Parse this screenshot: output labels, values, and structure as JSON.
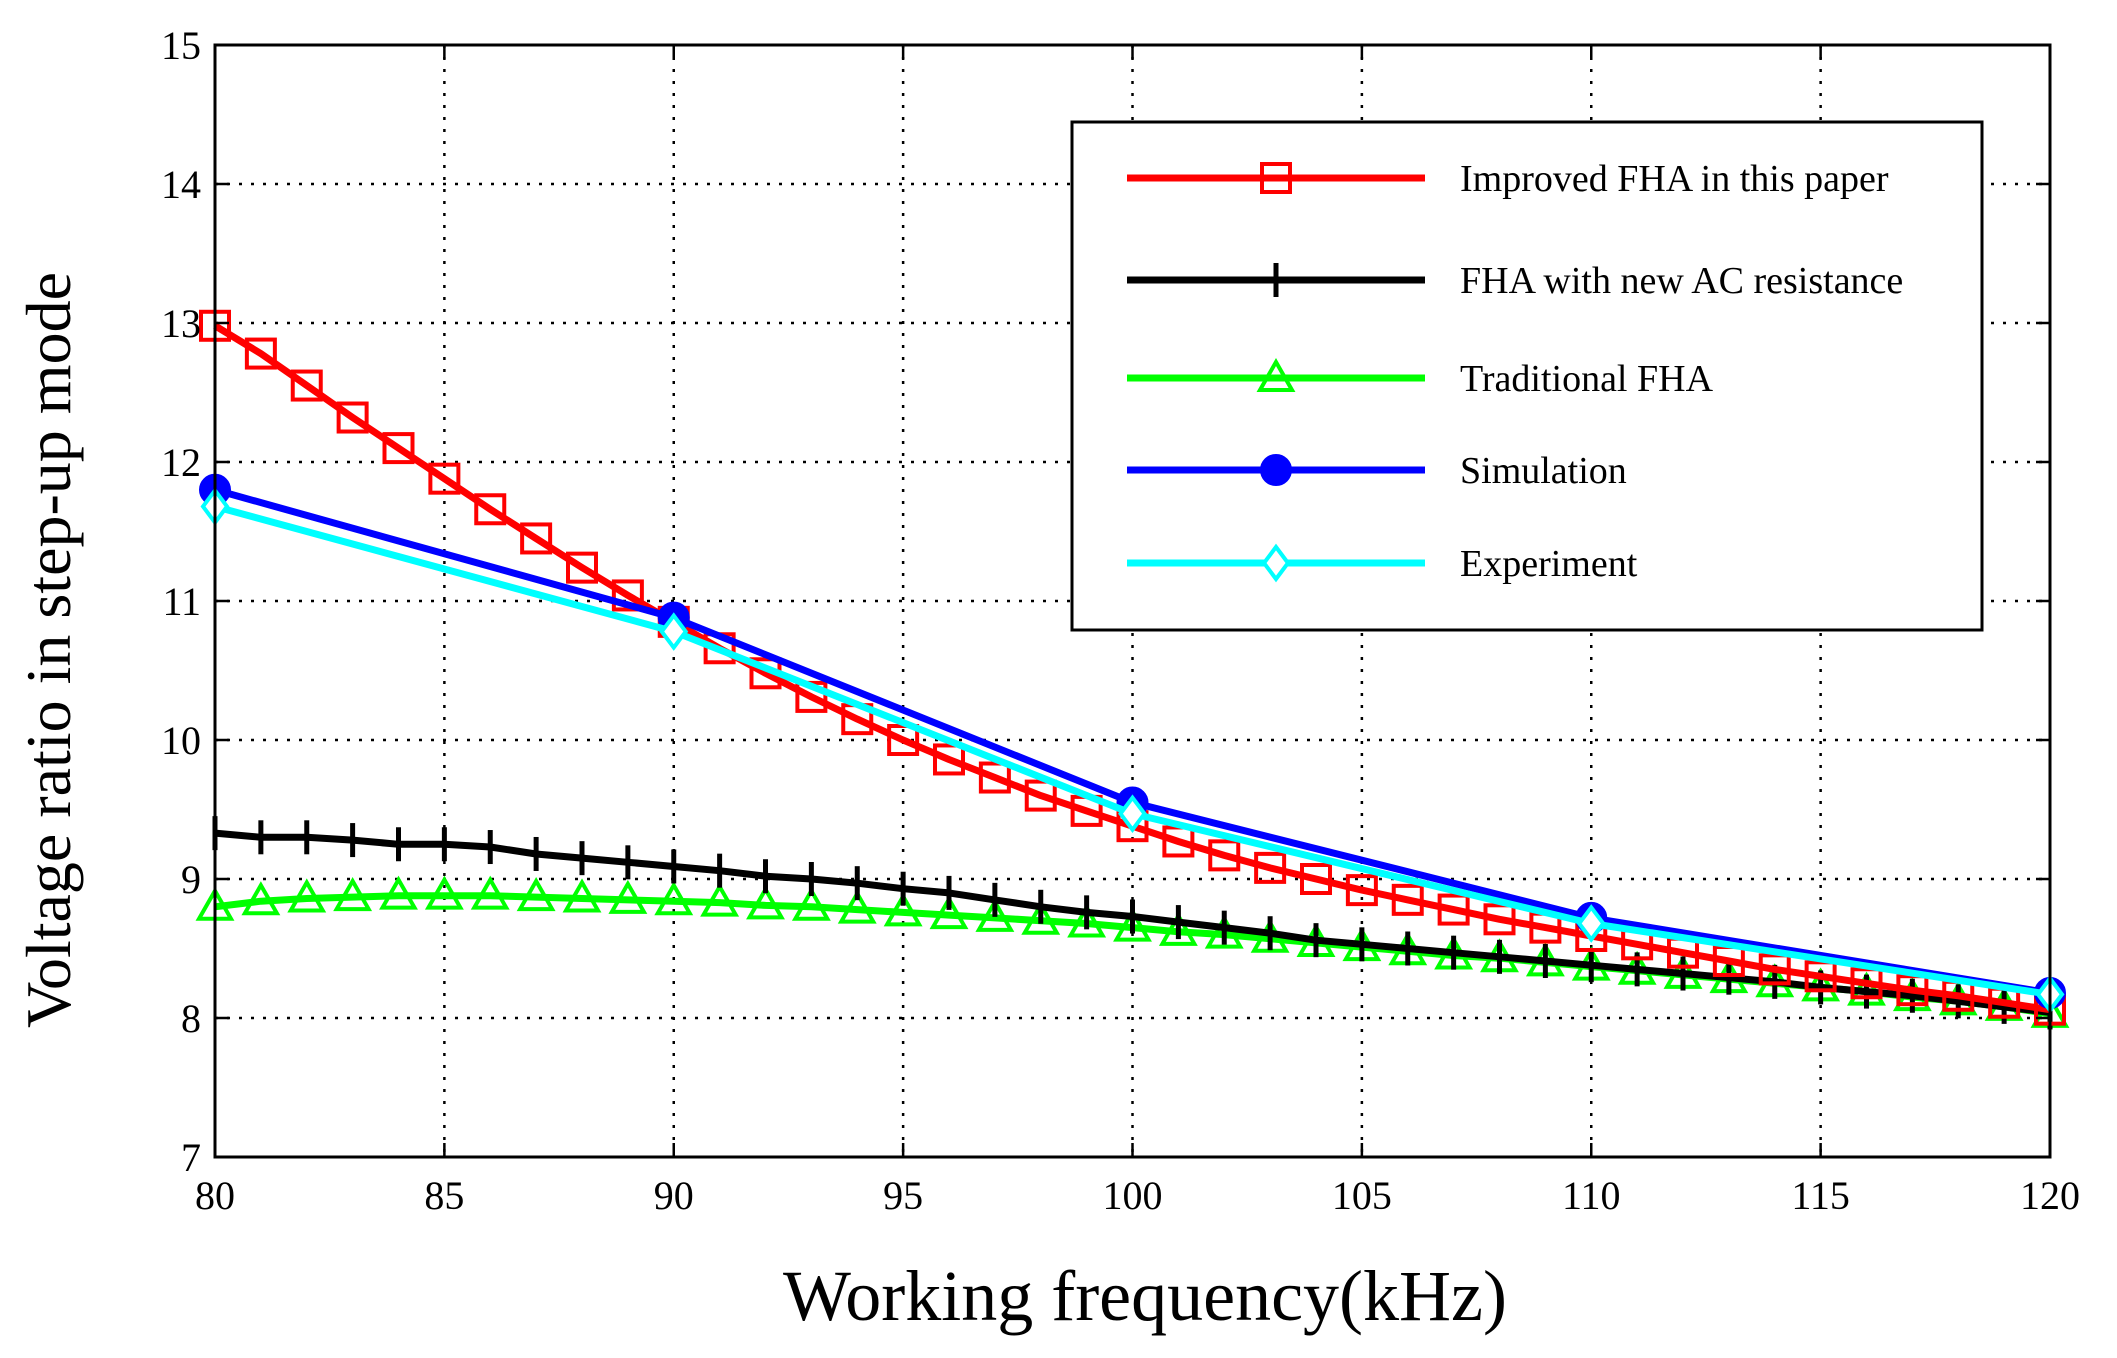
{
  "chart_data": {
    "type": "line",
    "title": "",
    "xlabel": "Working frequency(kHz)",
    "ylabel": "Voltage ratio in step-up mode",
    "xlim": [
      80,
      120
    ],
    "ylim": [
      7,
      15
    ],
    "xticks": [
      80,
      85,
      90,
      95,
      100,
      105,
      110,
      115,
      120
    ],
    "yticks": [
      7,
      8,
      9,
      10,
      11,
      12,
      13,
      14,
      15
    ],
    "grid": true,
    "legend_position": "top-right",
    "series": [
      {
        "name": "Improved FHA in this paper",
        "color": "#ff0000",
        "marker": "square",
        "x": [
          80,
          81,
          82,
          83,
          84,
          85,
          86,
          87,
          88,
          89,
          90,
          91,
          92,
          93,
          94,
          95,
          96,
          97,
          98,
          99,
          100,
          101,
          102,
          103,
          104,
          105,
          106,
          107,
          108,
          109,
          110,
          111,
          112,
          113,
          114,
          115,
          116,
          117,
          118,
          119,
          120
        ],
        "y": [
          12.98,
          12.78,
          12.55,
          12.32,
          12.1,
          11.88,
          11.66,
          11.45,
          11.24,
          11.04,
          10.85,
          10.66,
          10.48,
          10.31,
          10.15,
          10.0,
          9.86,
          9.73,
          9.6,
          9.49,
          9.38,
          9.27,
          9.17,
          9.08,
          9.0,
          8.92,
          8.85,
          8.78,
          8.71,
          8.65,
          8.59,
          8.53,
          8.47,
          8.41,
          8.35,
          8.3,
          8.25,
          8.2,
          8.16,
          8.11,
          8.06
        ]
      },
      {
        "name": "FHA with new AC resistance",
        "color": "#000000",
        "marker": "plus",
        "x": [
          80,
          81,
          82,
          83,
          84,
          85,
          86,
          87,
          88,
          89,
          90,
          91,
          92,
          93,
          94,
          95,
          96,
          97,
          98,
          99,
          100,
          101,
          102,
          103,
          104,
          105,
          106,
          107,
          108,
          109,
          110,
          111,
          112,
          113,
          114,
          115,
          116,
          117,
          118,
          119,
          120
        ],
        "y": [
          9.33,
          9.3,
          9.3,
          9.28,
          9.25,
          9.25,
          9.23,
          9.18,
          9.15,
          9.12,
          9.09,
          9.06,
          9.02,
          9.0,
          8.97,
          8.93,
          8.9,
          8.85,
          8.8,
          8.76,
          8.73,
          8.69,
          8.65,
          8.61,
          8.56,
          8.53,
          8.5,
          8.47,
          8.44,
          8.41,
          8.38,
          8.35,
          8.32,
          8.29,
          8.26,
          8.22,
          8.19,
          8.16,
          8.12,
          8.08,
          8.04
        ]
      },
      {
        "name": "Traditional FHA",
        "color": "#00ff00",
        "marker": "triangle",
        "x": [
          80,
          81,
          82,
          83,
          84,
          85,
          86,
          87,
          88,
          89,
          90,
          91,
          92,
          93,
          94,
          95,
          96,
          97,
          98,
          99,
          100,
          101,
          102,
          103,
          104,
          105,
          106,
          107,
          108,
          109,
          110,
          111,
          112,
          113,
          114,
          115,
          116,
          117,
          118,
          119,
          120
        ],
        "y": [
          8.8,
          8.84,
          8.86,
          8.87,
          8.88,
          8.88,
          8.88,
          8.87,
          8.86,
          8.85,
          8.84,
          8.83,
          8.81,
          8.8,
          8.78,
          8.76,
          8.74,
          8.72,
          8.7,
          8.68,
          8.65,
          8.62,
          8.6,
          8.57,
          8.54,
          8.51,
          8.48,
          8.45,
          8.43,
          8.4,
          8.37,
          8.34,
          8.31,
          8.28,
          8.25,
          8.22,
          8.19,
          8.15,
          8.12,
          8.08,
          8.03
        ]
      },
      {
        "name": "Simulation",
        "color": "#0000ff",
        "marker": "circle",
        "x": [
          80,
          90,
          100,
          110,
          120
        ],
        "y": [
          11.8,
          10.88,
          9.55,
          8.72,
          8.18
        ]
      },
      {
        "name": "Experiment",
        "color": "#00ffff",
        "marker": "diamond",
        "x": [
          80,
          90,
          100,
          110,
          120
        ],
        "y": [
          11.68,
          10.78,
          9.47,
          8.68,
          8.17
        ]
      }
    ]
  }
}
